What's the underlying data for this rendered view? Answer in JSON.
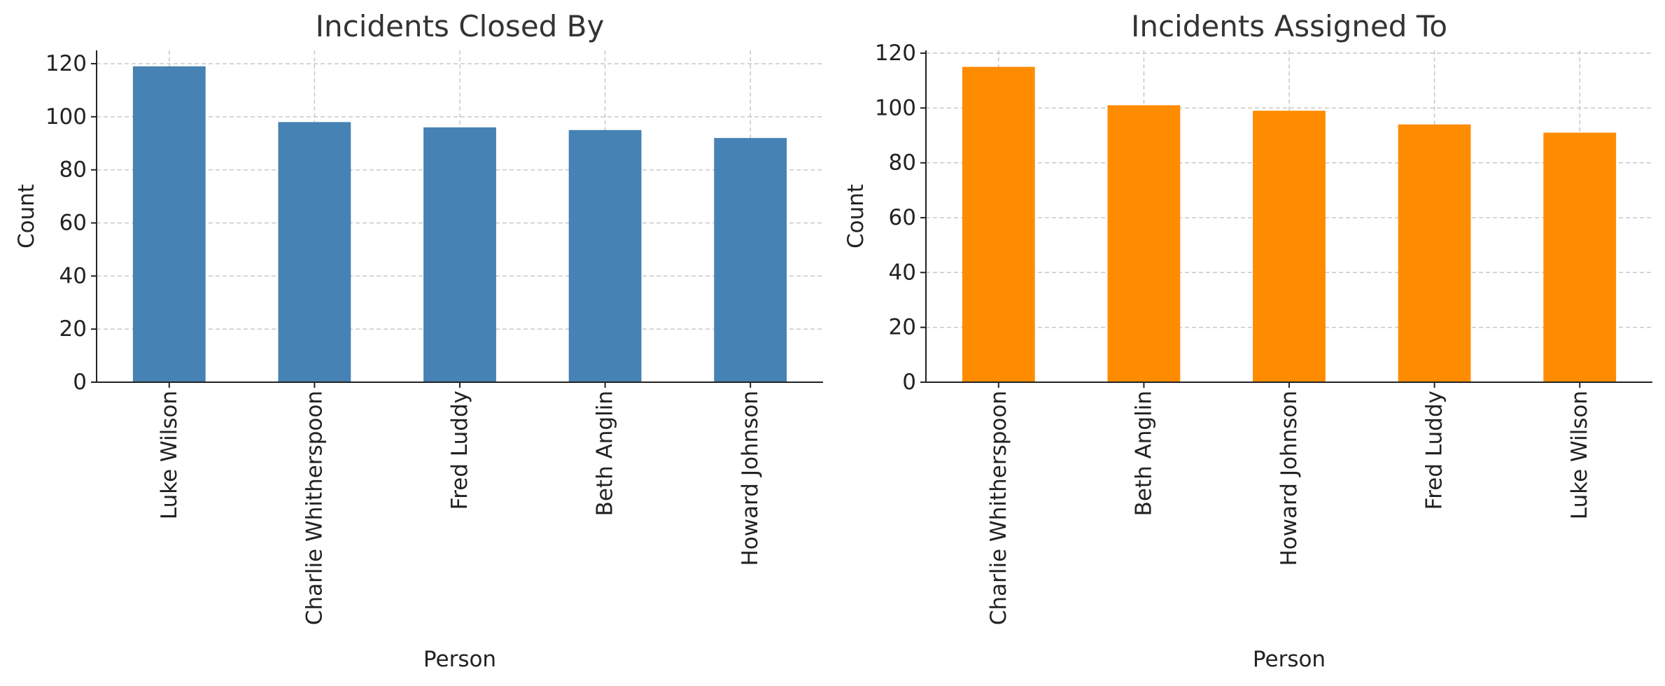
{
  "chart_data": [
    {
      "type": "bar",
      "title": "Incidents Closed By",
      "xlabel": "Person",
      "ylabel": "Count",
      "categories": [
        "Luke Wilson",
        "Charlie Whitherspoon",
        "Fred Luddy",
        "Beth Anglin",
        "Howard Johnson"
      ],
      "values": [
        119,
        98,
        96,
        95,
        92
      ],
      "ylim": [
        0,
        125
      ],
      "yticks": [
        0,
        20,
        40,
        60,
        80,
        100,
        120
      ],
      "color": "#4682B4",
      "grid": true
    },
    {
      "type": "bar",
      "title": "Incidents Assigned To",
      "xlabel": "Person",
      "ylabel": "Count",
      "categories": [
        "Charlie Whitherspoon",
        "Beth Anglin",
        "Howard Johnson",
        "Fred Luddy",
        "Luke Wilson"
      ],
      "values": [
        115,
        101,
        99,
        94,
        91
      ],
      "ylim": [
        0,
        121
      ],
      "yticks": [
        0,
        20,
        40,
        60,
        80,
        100,
        120
      ],
      "color": "#FF8C00",
      "grid": true
    }
  ]
}
